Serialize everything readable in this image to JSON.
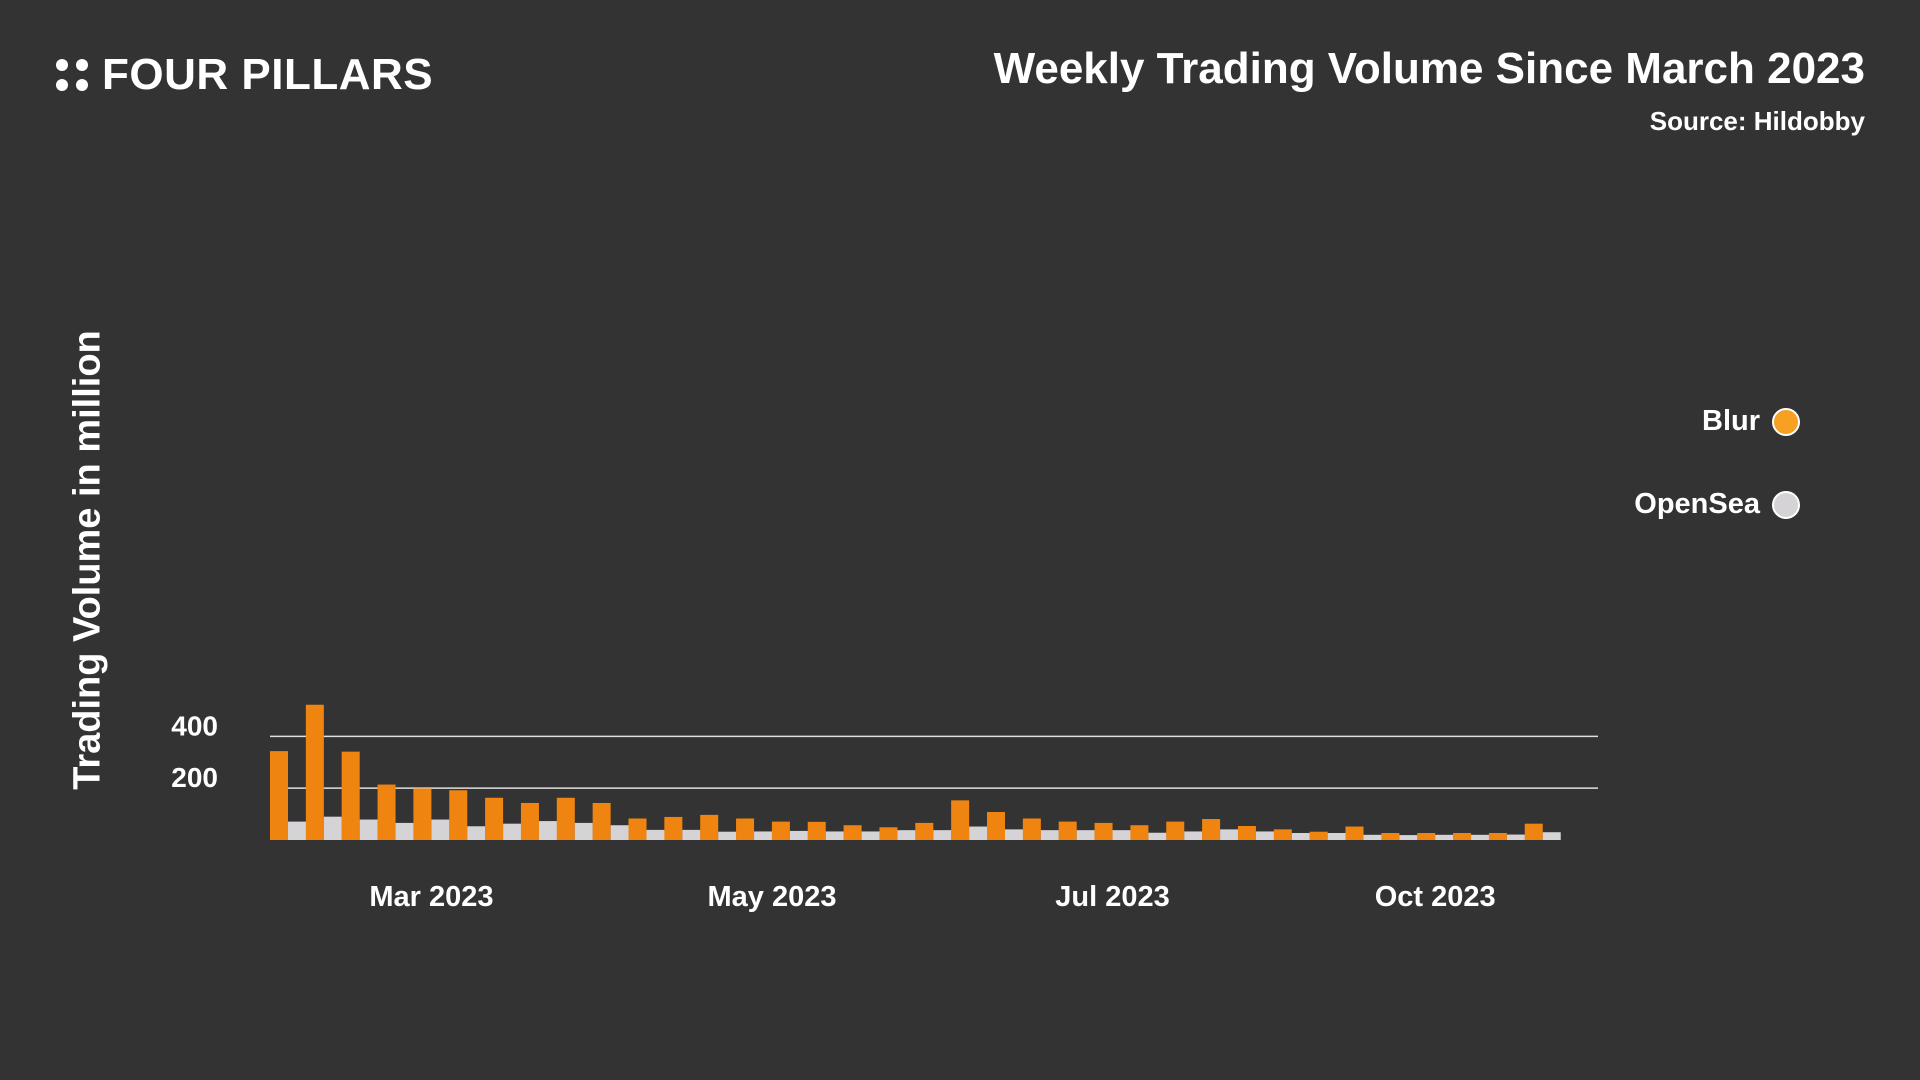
{
  "brand": {
    "name": "FOUR PILLARS"
  },
  "header": {
    "title": "Weekly Trading Volume Since March 2023",
    "source": "Source: Hildobby"
  },
  "colors": {
    "background": "#333333",
    "blur": "#F08410",
    "opensea": "#D5D3D6",
    "text": "#FFFFFF",
    "gridline": "#E0E0E0"
  },
  "legend": {
    "items": [
      {
        "label": "Blur",
        "color": "#F7A021"
      },
      {
        "label": "OpenSea",
        "color": "#D5D3D6"
      }
    ]
  },
  "chart_data": {
    "type": "bar",
    "title": "Weekly Trading Volume Since March 2023",
    "xlabel": "",
    "ylabel": "Trading Volume in million",
    "ylim": [
      0,
      520
    ],
    "yticks": [
      200,
      400
    ],
    "grid": true,
    "legend_position": "right",
    "xtick_labels": [
      {
        "label": "Mar 2023",
        "index": 4
      },
      {
        "label": "May 2023",
        "index": 13.5
      },
      {
        "label": "Jul 2023",
        "index": 23
      },
      {
        "label": "Oct 2023",
        "index": 32
      }
    ],
    "series": [
      {
        "name": "Blur",
        "values": [
          343,
          522,
          341,
          214,
          199,
          192,
          163,
          143,
          163,
          143,
          83,
          89,
          97,
          83,
          71,
          70,
          57,
          49,
          66,
          153,
          108,
          83,
          71,
          66,
          57,
          71,
          81,
          54,
          41,
          32,
          52,
          27,
          27,
          27,
          27,
          63
        ]
      },
      {
        "name": "OpenSea",
        "values": [
          71,
          90,
          79,
          66,
          79,
          53,
          63,
          73,
          66,
          57,
          39,
          39,
          32,
          33,
          35,
          33,
          33,
          38,
          38,
          52,
          41,
          38,
          38,
          38,
          28,
          33,
          41,
          33,
          27,
          27,
          20,
          19,
          20,
          20,
          21,
          30
        ]
      }
    ]
  }
}
